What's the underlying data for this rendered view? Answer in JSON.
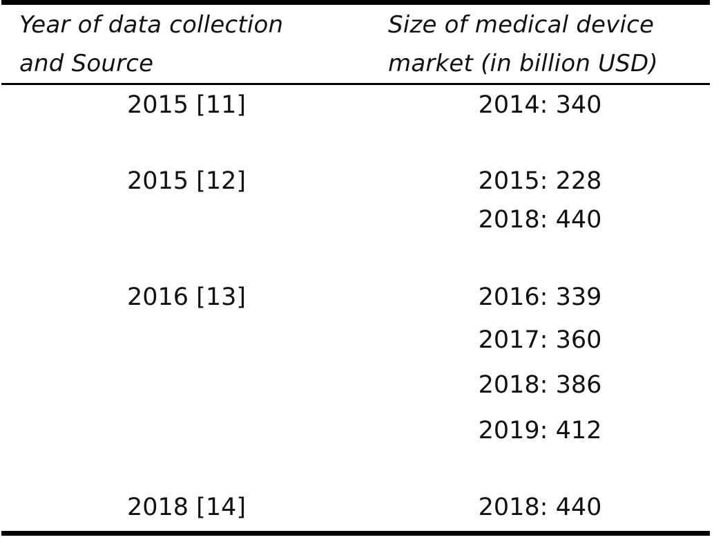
{
  "table": {
    "headers": {
      "col1": [
        "Year of data collection",
        "and Source"
      ],
      "col2": [
        "Size of medical device",
        "market (in billion USD)"
      ]
    },
    "sources": [
      "2015 [11]",
      "2015 [12]",
      "2016 [13]",
      "2018 [14]"
    ],
    "values": [
      "2014: 340",
      "2015: 228",
      "2018: 440",
      "2016: 339",
      "2017: 360",
      "2018: 386",
      "2019: 412",
      "2018: 440"
    ]
  }
}
